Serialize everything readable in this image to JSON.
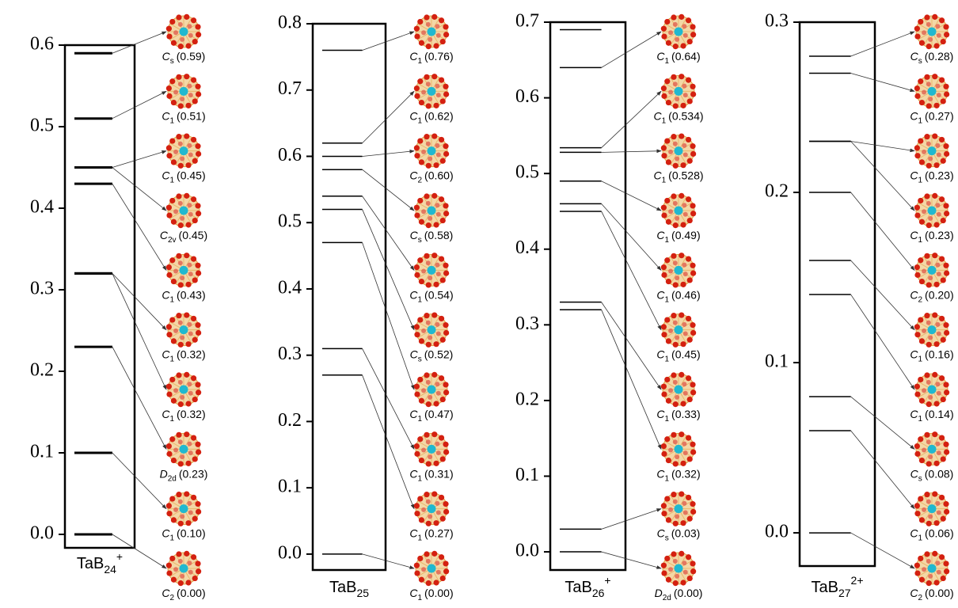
{
  "chart_data": [
    {
      "type": "energy-levels",
      "xlabel": {
        "text": "TaB",
        "sub": "24",
        "sup": "+"
      },
      "ylim": [
        -0.0165,
        0.6
      ],
      "yticks": [
        {
          "value": 0,
          "label": "0.0"
        },
        0.1,
        0.2,
        0.3,
        0.4,
        0.5,
        0.6
      ],
      "values": [
        0.59,
        0.51,
        0.45,
        0.45,
        0.43,
        0.32,
        0.32,
        0.23,
        0.1,
        0.0
      ],
      "value_labels": [
        "(0.59)",
        "(0.51)",
        "(0.45)",
        "(0.45)",
        "(0.43)",
        "(0.32)",
        "(0.32)",
        "(0.23)",
        "(0.10)",
        "(0.00)"
      ],
      "symmetry": [
        "C",
        "C",
        "C",
        "C",
        "C",
        "C",
        "C",
        "D",
        "C",
        "C"
      ],
      "symmetry_sub": [
        "s",
        "1",
        "1",
        "2v",
        "1",
        "1",
        "1",
        "2d",
        "1",
        "2"
      ]
    },
    {
      "type": "energy-levels",
      "xlabel": {
        "text": "TaB",
        "sub": "25"
      },
      "ylim": [
        -0.024,
        0.8
      ],
      "yticks": [
        {
          "value": 0,
          "label": "0.0"
        },
        0.1,
        0.2,
        0.3,
        0.4,
        0.5,
        0.6,
        0.7,
        0.8
      ],
      "values": [
        0.76,
        0.62,
        0.6,
        0.58,
        0.54,
        0.52,
        0.47,
        0.31,
        0.27,
        0.0
      ],
      "value_labels": [
        "(0.76)",
        "(0.62)",
        "(0.60)",
        "(0.58)",
        "(0.54)",
        "(0.52)",
        "(0.47)",
        "(0.31)",
        "(0.27)",
        "(0.00)"
      ],
      "symmetry": [
        "C",
        "C",
        "C",
        "C",
        "C",
        "C",
        "C",
        "C",
        "C",
        "C"
      ],
      "symmetry_sub": [
        "1",
        "1",
        "2",
        "s",
        "1",
        "s",
        "1",
        "1",
        "1",
        "1"
      ]
    },
    {
      "type": "energy-levels",
      "xlabel": {
        "text": "TaB",
        "sub": "26",
        "sup": "+"
      },
      "ylim": [
        -0.024,
        0.7
      ],
      "yticks": [
        {
          "value": 0,
          "label": "0.0"
        },
        0.1,
        0.2,
        0.3,
        0.4,
        0.5,
        0.6,
        0.7
      ],
      "extra_levels": [
        0.69
      ],
      "values": [
        0.64,
        0.534,
        0.528,
        0.49,
        0.46,
        0.45,
        0.33,
        0.32,
        0.03,
        0.0
      ],
      "value_labels": [
        "(0.64)",
        "(0.534)",
        "(0.528)",
        "(0.49)",
        "(0.46)",
        "(0.45)",
        "(0.33)",
        "(0.32)",
        "(0.03)",
        "(0.00)"
      ],
      "symmetry": [
        "C",
        "C",
        "C",
        "C",
        "C",
        "C",
        "C",
        "C",
        "C",
        "D"
      ],
      "symmetry_sub": [
        "1",
        "1",
        "1",
        "1",
        "1",
        "1",
        "1",
        "1",
        "s",
        "2d"
      ]
    },
    {
      "type": "energy-levels",
      "xlabel": {
        "text": "TaB",
        "sub": "27",
        "sup": "2+"
      },
      "ylim": [
        -0.0195,
        0.3
      ],
      "yticks": [
        {
          "value": 0,
          "label": "0.0"
        },
        0.1,
        0.2,
        0.3
      ],
      "values": [
        0.28,
        0.27,
        0.23,
        0.23,
        0.2,
        0.16,
        0.14,
        0.08,
        0.06,
        0.0
      ],
      "value_labels": [
        "(0.28)",
        "(0.27)",
        "(0.23)",
        "(0.23)",
        "(0.20)",
        "(0.16)",
        "(0.14)",
        "(0.08)",
        "(0.06)",
        "(0.00)"
      ],
      "symmetry": [
        "C",
        "C",
        "C",
        "C",
        "C",
        "C",
        "C",
        "C",
        "C",
        "C"
      ],
      "symmetry_sub": [
        "s",
        "1",
        "1",
        "1",
        "2",
        "1",
        "1",
        "s",
        "1",
        "2"
      ]
    }
  ]
}
